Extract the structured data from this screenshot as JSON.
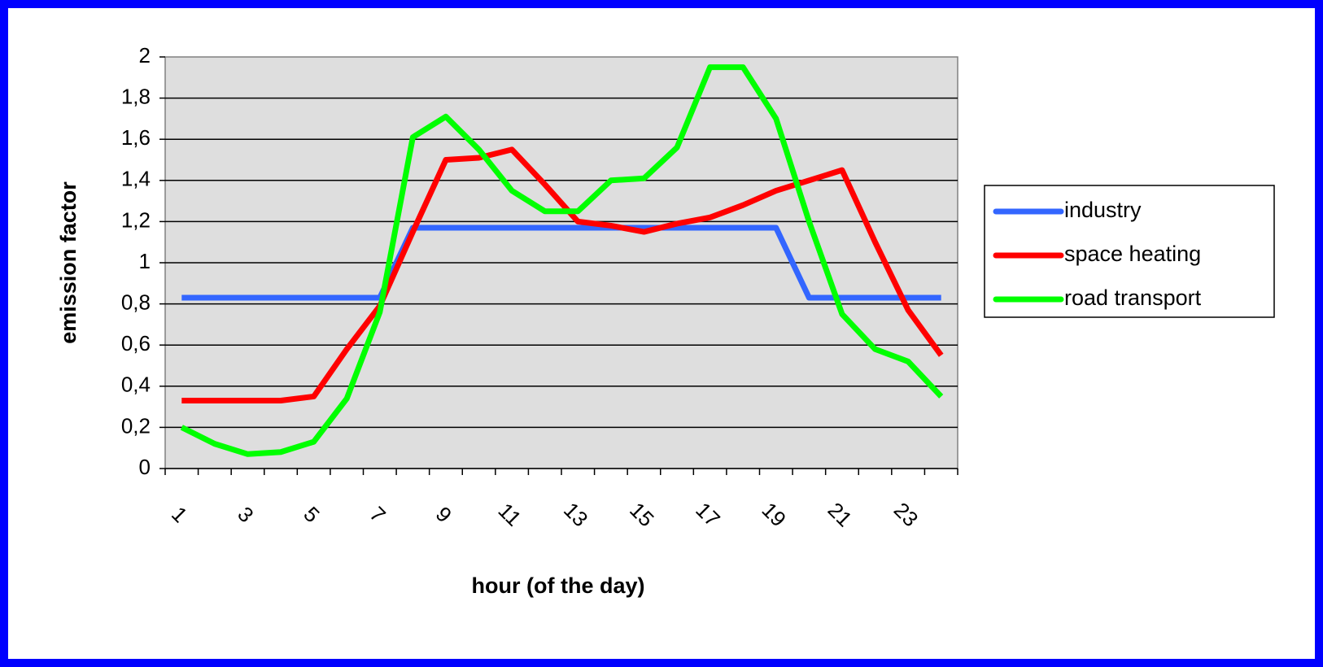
{
  "chart_data": {
    "type": "line",
    "xlabel": "hour (of the day)",
    "ylabel": "emission factor",
    "categories": [
      1,
      null,
      3,
      null,
      5,
      null,
      7,
      null,
      9,
      null,
      11,
      null,
      13,
      null,
      15,
      null,
      17,
      null,
      19,
      null,
      21,
      null,
      23,
      null
    ],
    "series": [
      {
        "name": "industry",
        "color": "#3366ff",
        "values": [
          0.83,
          0.83,
          0.83,
          0.83,
          0.83,
          0.83,
          0.83,
          1.17,
          1.17,
          1.17,
          1.17,
          1.17,
          1.17,
          1.17,
          1.17,
          1.17,
          1.17,
          1.17,
          1.17,
          0.83,
          0.83,
          0.83,
          0.83,
          0.83
        ]
      },
      {
        "name": "space heating",
        "color": "#ff0000",
        "values": [
          0.33,
          0.33,
          0.33,
          0.33,
          0.35,
          0.58,
          0.79,
          1.15,
          1.5,
          1.51,
          1.55,
          1.38,
          1.2,
          1.18,
          1.15,
          1.19,
          1.22,
          1.28,
          1.35,
          1.4,
          1.45,
          1.1,
          0.77,
          0.55
        ]
      },
      {
        "name": "road transport",
        "color": "#00ff00",
        "values": [
          0.2,
          0.12,
          0.07,
          0.08,
          0.13,
          0.34,
          0.76,
          1.61,
          1.71,
          1.55,
          1.35,
          1.25,
          1.25,
          1.4,
          1.41,
          1.56,
          1.95,
          1.95,
          1.7,
          1.2,
          0.75,
          0.58,
          0.52,
          0.35
        ]
      }
    ],
    "ylim": [
      0,
      2
    ],
    "yticks": [
      0,
      {
        "value": 0.2,
        "label": "0,2"
      },
      {
        "value": 0.4,
        "label": "0,4"
      },
      {
        "value": 0.6,
        "label": "0,6"
      },
      {
        "value": 0.8,
        "label": "0,8"
      },
      1,
      {
        "value": 1.2,
        "label": "1,2"
      },
      {
        "value": 1.4,
        "label": "1,4"
      },
      {
        "value": 1.6,
        "label": "1,6"
      },
      {
        "value": 1.8,
        "label": "1,8"
      },
      2
    ],
    "grid": true,
    "legend": "right"
  }
}
